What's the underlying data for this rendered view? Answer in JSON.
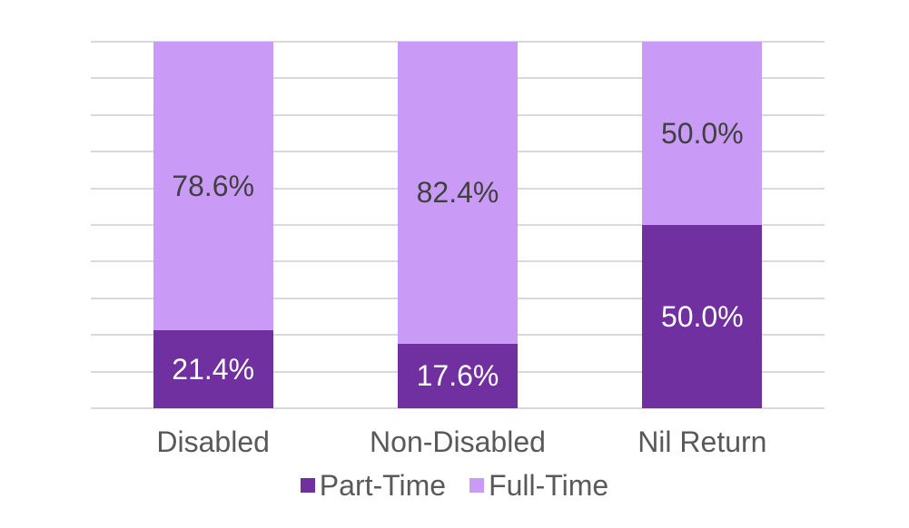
{
  "chart_data": {
    "type": "bar",
    "subtype": "stacked-100",
    "title": "",
    "xlabel": "",
    "ylabel": "",
    "categories": [
      "Disabled",
      "Non-Disabled",
      "Nil Return"
    ],
    "series": [
      {
        "name": "Part-Time",
        "color": "#7030A0",
        "label_color": "#FFFFFF",
        "values": [
          21.4,
          17.6,
          50.0
        ],
        "labels": [
          "21.4%",
          "17.6%",
          "50.0%"
        ]
      },
      {
        "name": "Full-Time",
        "color": "#C99BF6",
        "label_color": "#404040",
        "values": [
          78.6,
          82.4,
          50.0
        ],
        "labels": [
          "78.6%",
          "82.4%",
          "50.0%"
        ]
      }
    ],
    "ylim": [
      0,
      100
    ],
    "gridline_interval": 10,
    "grid": "horizontal",
    "y_axis_labels_visible": false,
    "legend_position": "bottom",
    "colors": {
      "gridline": "#D9D9D9",
      "axis_text": "#595959",
      "legend_text": "#595959",
      "background": "#FFFFFF"
    }
  }
}
